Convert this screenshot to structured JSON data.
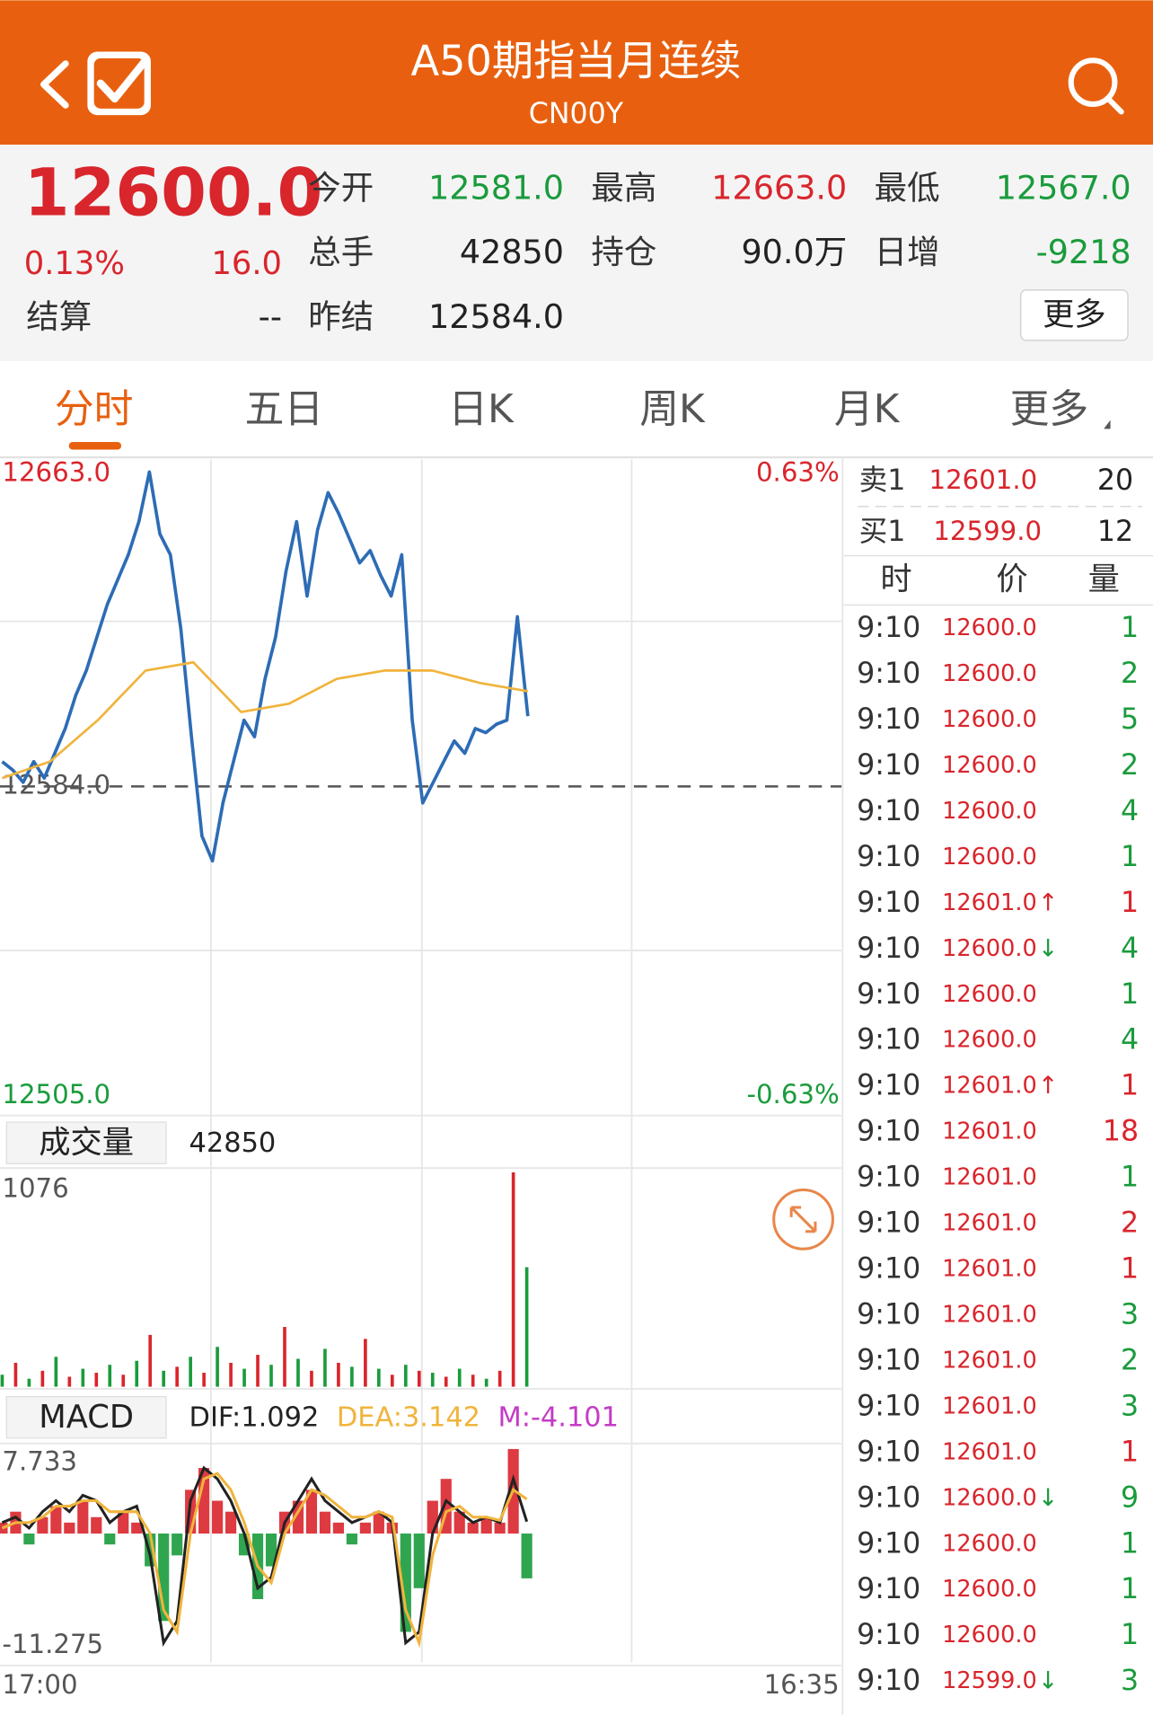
{
  "header": {
    "title": "A50期指当月连续",
    "subtitle": "CN00Y"
  },
  "quote": {
    "price": "12600.0",
    "change_pct": "0.13%",
    "change": "16.0",
    "fields": [
      {
        "label": "今开",
        "value": "12581.0",
        "color": "#1a9b3c"
      },
      {
        "label": "最高",
        "value": "12663.0",
        "color": "#d9252c"
      },
      {
        "label": "最低",
        "value": "12567.0",
        "color": "#1a9b3c"
      },
      {
        "label": "总手",
        "value": "42850",
        "color": "#222222"
      },
      {
        "label": "持仓",
        "value": "90.0万",
        "color": "#222222"
      },
      {
        "label": "日增",
        "value": "-9218",
        "color": "#1a9b3c"
      },
      {
        "label": "结算",
        "value": "--",
        "color": "#222222"
      },
      {
        "label": "昨结",
        "value": "12584.0",
        "color": "#222222"
      }
    ],
    "more_button": "更多"
  },
  "tabs": [
    "分时",
    "五日",
    "日K",
    "周K",
    "月K",
    "更多"
  ],
  "chart_data": [
    {
      "type": "line",
      "ylim": [
        12505,
        12663
      ],
      "yticks": [
        {
          "value": 12663,
          "label": "12663.0"
        },
        {
          "value": 12584,
          "label": "12584.0"
        },
        {
          "value": 12505,
          "label": "12505.0"
        }
      ],
      "y2lim": [
        -0.63,
        0.63
      ],
      "y2ticks": [
        {
          "value": 0.63,
          "label": "0.63%"
        },
        {
          "value": -0.63,
          "label": "-0.63%"
        }
      ],
      "series": [
        {
          "color": "#2d6cb5",
          "values": [
            12590,
            12588,
            12585,
            12590,
            12586,
            12592,
            12598,
            12606,
            12612,
            12620,
            12628,
            12634,
            12640,
            12648,
            12660,
            12645,
            12640,
            12622,
            12596,
            12572,
            12566,
            12580,
            12590,
            12600,
            12596,
            12610,
            12620,
            12636,
            12648,
            12630,
            12646,
            12655,
            12650,
            12644,
            12638,
            12641,
            12635,
            12630,
            12640,
            12600,
            12580,
            12585,
            12590,
            12595,
            12592,
            12598,
            12597,
            12599,
            12600,
            12625,
            12601
          ]
        },
        {
          "color": "#f0b43c",
          "values": [
            12586,
            12590,
            12600,
            12612,
            12614,
            12602,
            12604,
            12610,
            12612,
            12612,
            12609,
            12607
          ]
        }
      ]
    },
    {
      "type": "bar",
      "title": "成交量",
      "annotation": "42850",
      "ylim": [
        0,
        1076
      ],
      "yticks": [
        1076
      ],
      "values": [
        60,
        120,
        40,
        80,
        150,
        50,
        90,
        70,
        110,
        60,
        130,
        260,
        80,
        100,
        150,
        70,
        200,
        120,
        90,
        160,
        110,
        300,
        140,
        80,
        190,
        120,
        100,
        240,
        90,
        60,
        110,
        80,
        70,
        50,
        90,
        60,
        40,
        80,
        1076,
        600
      ],
      "colors": [
        "#1a9b3c",
        "#d9252c",
        "#1a9b3c",
        "#d9252c",
        "#1a9b3c",
        "#d9252c",
        "#1a9b3c",
        "#d9252c",
        "#1a9b3c",
        "#d9252c",
        "#1a9b3c",
        "#d9252c",
        "#1a9b3c",
        "#d9252c",
        "#1a9b3c",
        "#d9252c",
        "#1a9b3c",
        "#d9252c",
        "#1a9b3c",
        "#d9252c",
        "#1a9b3c",
        "#d9252c",
        "#1a9b3c",
        "#d9252c",
        "#1a9b3c",
        "#d9252c",
        "#1a9b3c",
        "#d9252c",
        "#1a9b3c",
        "#d9252c",
        "#1a9b3c",
        "#d9252c",
        "#1a9b3c",
        "#d9252c",
        "#1a9b3c",
        "#d9252c",
        "#1a9b3c",
        "#d9252c",
        "#d9252c",
        "#1a9b3c"
      ]
    },
    {
      "type": "macd",
      "title": "MACD",
      "annotations": [
        {
          "text": "DIF:1.092",
          "color": "#222222"
        },
        {
          "text": "DEA:3.142",
          "color": "#f0b43c"
        },
        {
          "text": "M:-4.101",
          "color": "#c43cc4"
        }
      ],
      "ylim": [
        -11.275,
        7.733
      ],
      "yticks": [
        {
          "value": 7.733,
          "label": "7.733"
        },
        {
          "value": -11.275,
          "label": "-11.275"
        }
      ],
      "xtick_labels": [
        "17:00",
        "16:35"
      ],
      "histogram": [
        1,
        2,
        -1,
        1.5,
        2.5,
        1,
        3,
        1.5,
        -1,
        2,
        1,
        -3,
        -8,
        -2,
        4,
        6,
        3,
        2,
        -2,
        -6,
        -3,
        2,
        3,
        4,
        2,
        1,
        -1,
        1,
        2,
        1,
        -9,
        -5,
        3,
        5,
        2,
        1,
        1.5,
        1,
        7.733,
        -4.101
      ],
      "up_color": "#d9252c",
      "down_color": "#1a9b3c",
      "series": [
        {
          "color": "#222222",
          "values": [
            1,
            1.5,
            0.5,
            2,
            3,
            2,
            3.5,
            3,
            1,
            2,
            2.5,
            -2,
            -10,
            -8,
            3,
            6,
            5,
            3,
            0,
            -5,
            -4,
            1,
            3,
            5,
            3,
            2,
            1,
            1.5,
            2,
            1,
            -10,
            -9,
            0,
            3,
            2,
            1,
            1.5,
            1,
            5,
            1.092
          ]
        },
        {
          "color": "#f0b43c",
          "values": [
            0.5,
            1,
            1,
            1.5,
            2.5,
            2.5,
            3,
            3,
            2,
            2,
            2,
            0,
            -7,
            -9,
            0,
            5,
            5.5,
            4,
            1,
            -3,
            -4.5,
            0,
            2,
            4,
            3.5,
            2.5,
            1.5,
            1.5,
            2,
            1.5,
            -7,
            -10,
            -2,
            2,
            2.5,
            1.5,
            1.5,
            1.2,
            4,
            3.142
          ]
        }
      ]
    }
  ],
  "order_book": [
    {
      "side": "卖1",
      "price": "12601.0",
      "qty": "20"
    },
    {
      "side": "买1",
      "price": "12599.0",
      "qty": "12"
    }
  ],
  "trades_header": [
    "时",
    "价",
    "量"
  ],
  "trades": [
    {
      "time": "9:10",
      "price": "12600.0",
      "arrow": "",
      "qty": "1",
      "color": "#1a9b3c"
    },
    {
      "time": "9:10",
      "price": "12600.0",
      "arrow": "",
      "qty": "2",
      "color": "#1a9b3c"
    },
    {
      "time": "9:10",
      "price": "12600.0",
      "arrow": "",
      "qty": "5",
      "color": "#1a9b3c"
    },
    {
      "time": "9:10",
      "price": "12600.0",
      "arrow": "",
      "qty": "2",
      "color": "#1a9b3c"
    },
    {
      "time": "9:10",
      "price": "12600.0",
      "arrow": "",
      "qty": "4",
      "color": "#1a9b3c"
    },
    {
      "time": "9:10",
      "price": "12600.0",
      "arrow": "",
      "qty": "1",
      "color": "#1a9b3c"
    },
    {
      "time": "9:10",
      "price": "12601.0",
      "arrow": "↑",
      "qty": "1",
      "color": "#d9252c"
    },
    {
      "time": "9:10",
      "price": "12600.0",
      "arrow": "↓",
      "qty": "4",
      "color": "#1a9b3c"
    },
    {
      "time": "9:10",
      "price": "12600.0",
      "arrow": "",
      "qty": "1",
      "color": "#1a9b3c"
    },
    {
      "time": "9:10",
      "price": "12600.0",
      "arrow": "",
      "qty": "4",
      "color": "#1a9b3c"
    },
    {
      "time": "9:10",
      "price": "12601.0",
      "arrow": "↑",
      "qty": "1",
      "color": "#d9252c"
    },
    {
      "time": "9:10",
      "price": "12601.0",
      "arrow": "",
      "qty": "18",
      "color": "#d9252c"
    },
    {
      "time": "9:10",
      "price": "12601.0",
      "arrow": "",
      "qty": "1",
      "color": "#1a9b3c"
    },
    {
      "time": "9:10",
      "price": "12601.0",
      "arrow": "",
      "qty": "2",
      "color": "#d9252c"
    },
    {
      "time": "9:10",
      "price": "12601.0",
      "arrow": "",
      "qty": "1",
      "color": "#d9252c"
    },
    {
      "time": "9:10",
      "price": "12601.0",
      "arrow": "",
      "qty": "3",
      "color": "#1a9b3c"
    },
    {
      "time": "9:10",
      "price": "12601.0",
      "arrow": "",
      "qty": "2",
      "color": "#1a9b3c"
    },
    {
      "time": "9:10",
      "price": "12601.0",
      "arrow": "",
      "qty": "3",
      "color": "#1a9b3c"
    },
    {
      "time": "9:10",
      "price": "12601.0",
      "arrow": "",
      "qty": "1",
      "color": "#d9252c"
    },
    {
      "time": "9:10",
      "price": "12600.0",
      "arrow": "↓",
      "qty": "9",
      "color": "#1a9b3c"
    },
    {
      "time": "9:10",
      "price": "12600.0",
      "arrow": "",
      "qty": "1",
      "color": "#1a9b3c"
    },
    {
      "time": "9:10",
      "price": "12600.0",
      "arrow": "",
      "qty": "1",
      "color": "#1a9b3c"
    },
    {
      "time": "9:10",
      "price": "12600.0",
      "arrow": "",
      "qty": "1",
      "color": "#1a9b3c"
    },
    {
      "time": "9:10",
      "price": "12599.0",
      "arrow": "↓",
      "qty": "3",
      "color": "#1a9b3c"
    }
  ]
}
